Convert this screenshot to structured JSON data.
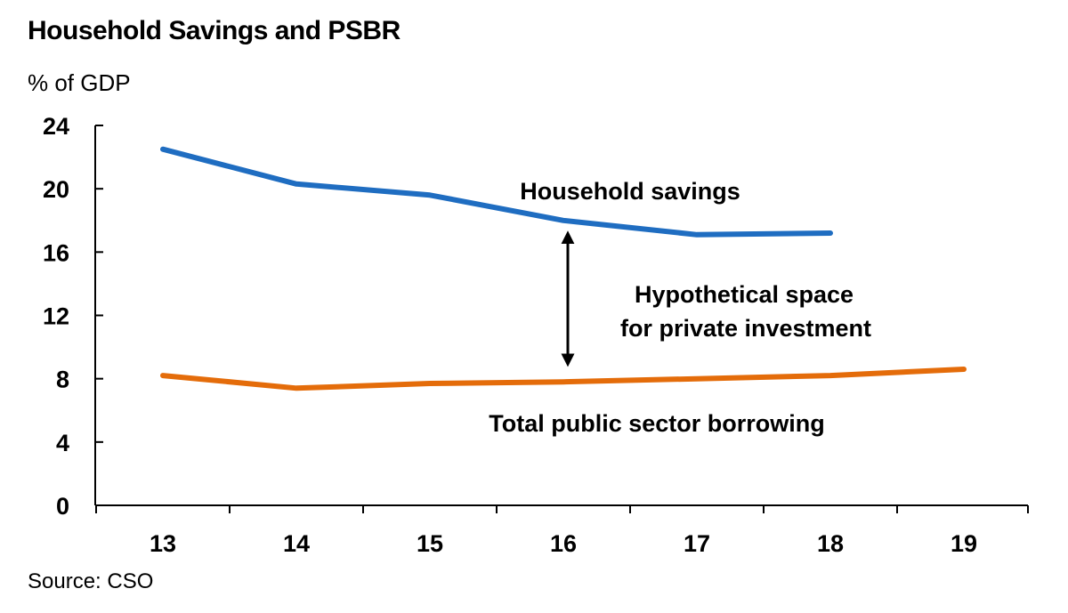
{
  "chart_data": {
    "type": "line",
    "title": "Household Savings and PSBR",
    "ylabel": "% of GDP",
    "xlabel": "",
    "categories": [
      "13",
      "14",
      "15",
      "16",
      "17",
      "18",
      "19"
    ],
    "ylim": [
      0,
      24
    ],
    "yticks": [
      0,
      4,
      8,
      12,
      16,
      20,
      24
    ],
    "grid": false,
    "legend": "none",
    "series": [
      {
        "name": "Household savings",
        "color": "#1F6DC1",
        "values": [
          22.5,
          20.3,
          19.6,
          18.0,
          17.1,
          17.2,
          null
        ]
      },
      {
        "name": "Total public sector borrowing",
        "color": "#E46C0A",
        "values": [
          8.2,
          7.4,
          7.7,
          7.8,
          8.0,
          8.2,
          8.6
        ]
      }
    ],
    "annotations": [
      {
        "text_lines": [
          "Hypothetical space",
          "for private investment"
        ],
        "arrow": "double",
        "x_category": "16",
        "y_range": [
          8.8,
          17.3
        ]
      }
    ],
    "source": "Source: CSO"
  }
}
